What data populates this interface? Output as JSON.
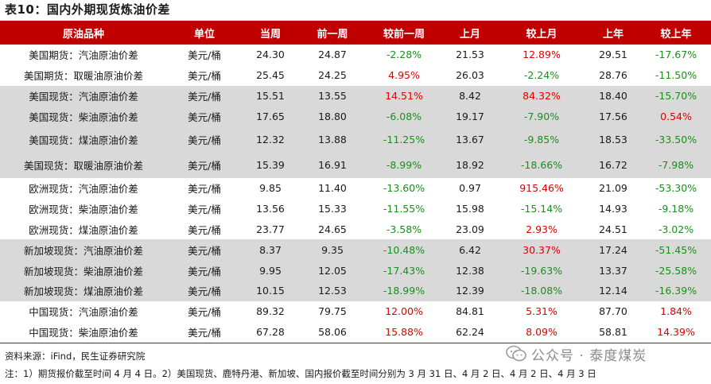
{
  "title": "表10：国内外期现货炼油价差",
  "headers": [
    "原油品种",
    "单位",
    "当周",
    "前一周",
    "较前一周",
    "上月",
    "较上月",
    "上年",
    "较上年"
  ],
  "rows": [
    {
      "name": "美国期货：汽油原油价差",
      "unit": "美元/桶",
      "cur": "24.30",
      "prev_week": "24.87",
      "wow": "-2.28%",
      "prev_month": "21.53",
      "mom": "12.89%",
      "prev_year": "29.51",
      "yoy": "-17.67%"
    },
    {
      "name": "美国期货：取暖油原油价差",
      "unit": "美元/桶",
      "cur": "25.45",
      "prev_week": "24.25",
      "wow": "4.95%",
      "prev_month": "26.03",
      "mom": "-2.24%",
      "prev_year": "28.76",
      "yoy": "-11.50%"
    },
    {
      "name": "美国现货：汽油原油价差",
      "unit": "美元/桶",
      "cur": "15.51",
      "prev_week": "13.55",
      "wow": "14.51%",
      "prev_month": "8.42",
      "mom": "84.32%",
      "prev_year": "18.40",
      "yoy": "-15.70%"
    },
    {
      "name": "美国现货：柴油原油价差",
      "unit": "美元/桶",
      "cur": "17.65",
      "prev_week": "18.80",
      "wow": "-6.08%",
      "prev_month": "19.17",
      "mom": "-7.90%",
      "prev_year": "17.56",
      "yoy": "0.54%"
    },
    {
      "name": "美国现货：煤油原油价差",
      "unit": "美元/桶",
      "cur": "12.32",
      "prev_week": "13.88",
      "wow": "-11.25%",
      "prev_month": "13.67",
      "mom": "-9.85%",
      "prev_year": "18.53",
      "yoy": "-33.50%"
    },
    {
      "name": "美国现货：取暖油原油价差",
      "unit": "美元/桶",
      "cur": "15.39",
      "prev_week": "16.91",
      "wow": "-8.99%",
      "prev_month": "18.92",
      "mom": "-18.66%",
      "prev_year": "16.72",
      "yoy": "-7.98%"
    },
    {
      "name": "欧洲现货：汽油原油价差",
      "unit": "美元/桶",
      "cur": "9.85",
      "prev_week": "11.40",
      "wow": "-13.60%",
      "prev_month": "0.97",
      "mom": "915.46%",
      "prev_year": "21.09",
      "yoy": "-53.30%"
    },
    {
      "name": "欧洲现货：柴油原油价差",
      "unit": "美元/桶",
      "cur": "13.56",
      "prev_week": "15.33",
      "wow": "-11.55%",
      "prev_month": "15.98",
      "mom": "-15.14%",
      "prev_year": "14.93",
      "yoy": "-9.18%"
    },
    {
      "name": "欧洲现货：煤油原油价差",
      "unit": "美元/桶",
      "cur": "23.77",
      "prev_week": "24.65",
      "wow": "-3.58%",
      "prev_month": "23.09",
      "mom": "2.93%",
      "prev_year": "24.51",
      "yoy": "-3.02%"
    },
    {
      "name": "新加坡现货：汽油原油价差",
      "unit": "美元/桶",
      "cur": "8.37",
      "prev_week": "9.35",
      "wow": "-10.48%",
      "prev_month": "6.42",
      "mom": "30.37%",
      "prev_year": "17.24",
      "yoy": "-51.45%"
    },
    {
      "name": "新加坡现货：柴油原油价差",
      "unit": "美元/桶",
      "cur": "9.95",
      "prev_week": "12.05",
      "wow": "-17.43%",
      "prev_month": "12.38",
      "mom": "-19.63%",
      "prev_year": "13.37",
      "yoy": "-25.58%"
    },
    {
      "name": "新加坡现货：煤油原油价差",
      "unit": "美元/桶",
      "cur": "10.15",
      "prev_week": "12.53",
      "wow": "-18.99%",
      "prev_month": "12.39",
      "mom": "-18.08%",
      "prev_year": "12.14",
      "yoy": "-16.39%"
    },
    {
      "name": "中国现货：汽油原油价差",
      "unit": "美元/桶",
      "cur": "89.32",
      "prev_week": "79.75",
      "wow": "12.00%",
      "prev_month": "84.81",
      "mom": "5.31%",
      "prev_year": "87.70",
      "yoy": "1.84%"
    },
    {
      "name": "中国现货：柴油原油价差",
      "unit": "美元/桶",
      "cur": "67.28",
      "prev_week": "58.06",
      "wow": "15.88%",
      "prev_month": "62.24",
      "mom": "8.09%",
      "prev_year": "58.81",
      "yoy": "14.39%"
    }
  ],
  "source": "资料来源：iFind，民生证券研究院",
  "note": "注：1）期货报价截至时间 4 月 4 日。2）美国现货、鹿特丹港、新加坡、国内报价截至时间分别为 3 月 31 日、4 月 2 日、4 月 2 日、4 月 3 日",
  "watermark": "公众号 · 泰度煤炭",
  "colors": {
    "header_bg": "#c00000",
    "positive": "#e00000",
    "negative": "#1e8c1e",
    "band": "#d9d9d9"
  }
}
